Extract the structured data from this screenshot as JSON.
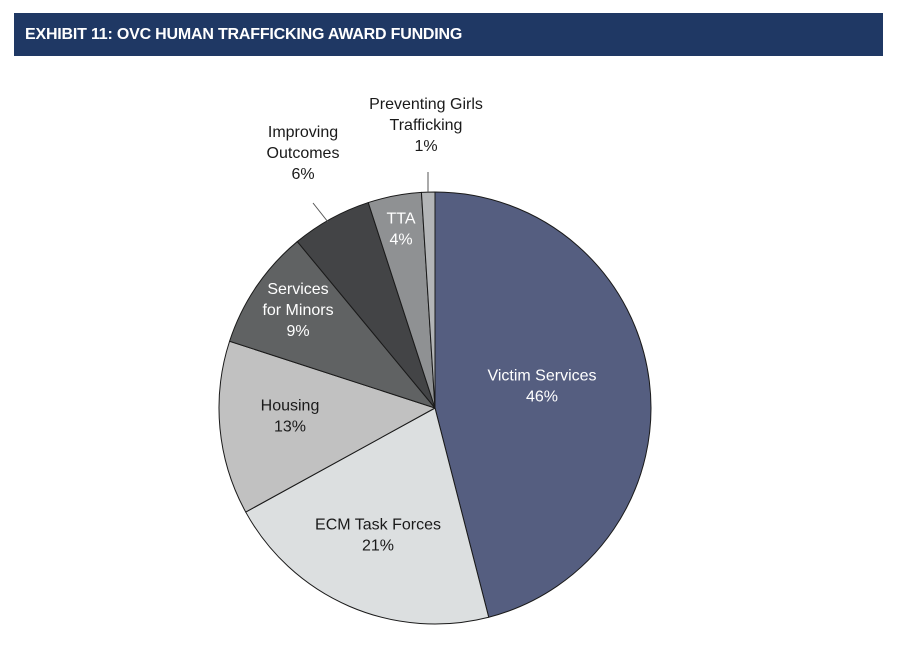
{
  "header": {
    "title": "EXHIBIT 11: OVC HUMAN TRAFFICKING AWARD FUNDING"
  },
  "chart_data": {
    "type": "pie",
    "title": "EXHIBIT 11: OVC HUMAN TRAFFICKING AWARD FUNDING",
    "slices": [
      {
        "label": "Victim Services",
        "label_lines": [
          "Victim Services"
        ],
        "percent_label": "46%",
        "value": 46,
        "color": "#555e80",
        "text_color": "#ffffff",
        "label_placement": "inside"
      },
      {
        "label": "ECM Task Forces",
        "label_lines": [
          "ECM Task Forces"
        ],
        "percent_label": "21%",
        "value": 21,
        "color": "#dcdfe0",
        "text_color": "#1a1a1a",
        "label_placement": "inside"
      },
      {
        "label": "Housing",
        "label_lines": [
          "Housing"
        ],
        "percent_label": "13%",
        "value": 13,
        "color": "#c1c1c1",
        "text_color": "#1a1a1a",
        "label_placement": "inside"
      },
      {
        "label": "Services for Minors",
        "label_lines": [
          "Services",
          "for Minors"
        ],
        "percent_label": "9%",
        "value": 9,
        "color": "#606263",
        "text_color": "#ffffff",
        "label_placement": "inside"
      },
      {
        "label": "Improving Outcomes",
        "label_lines": [
          "Improving",
          "Outcomes"
        ],
        "percent_label": "6%",
        "value": 6,
        "color": "#434446",
        "text_color": "#1a1a1a",
        "label_placement": "outside"
      },
      {
        "label": "TTA",
        "label_lines": [
          "TTA"
        ],
        "percent_label": "4%",
        "value": 4,
        "color": "#8f9193",
        "text_color": "#ffffff",
        "label_placement": "inside"
      },
      {
        "label": "Preventing Girls Trafficking",
        "label_lines": [
          "Preventing Girls",
          "Trafficking"
        ],
        "percent_label": "1%",
        "value": 1,
        "color": "#b3b5b7",
        "text_color": "#1a1a1a",
        "label_placement": "outside"
      }
    ],
    "start_angle_deg": 0,
    "direction": "clockwise",
    "legend": "none"
  }
}
